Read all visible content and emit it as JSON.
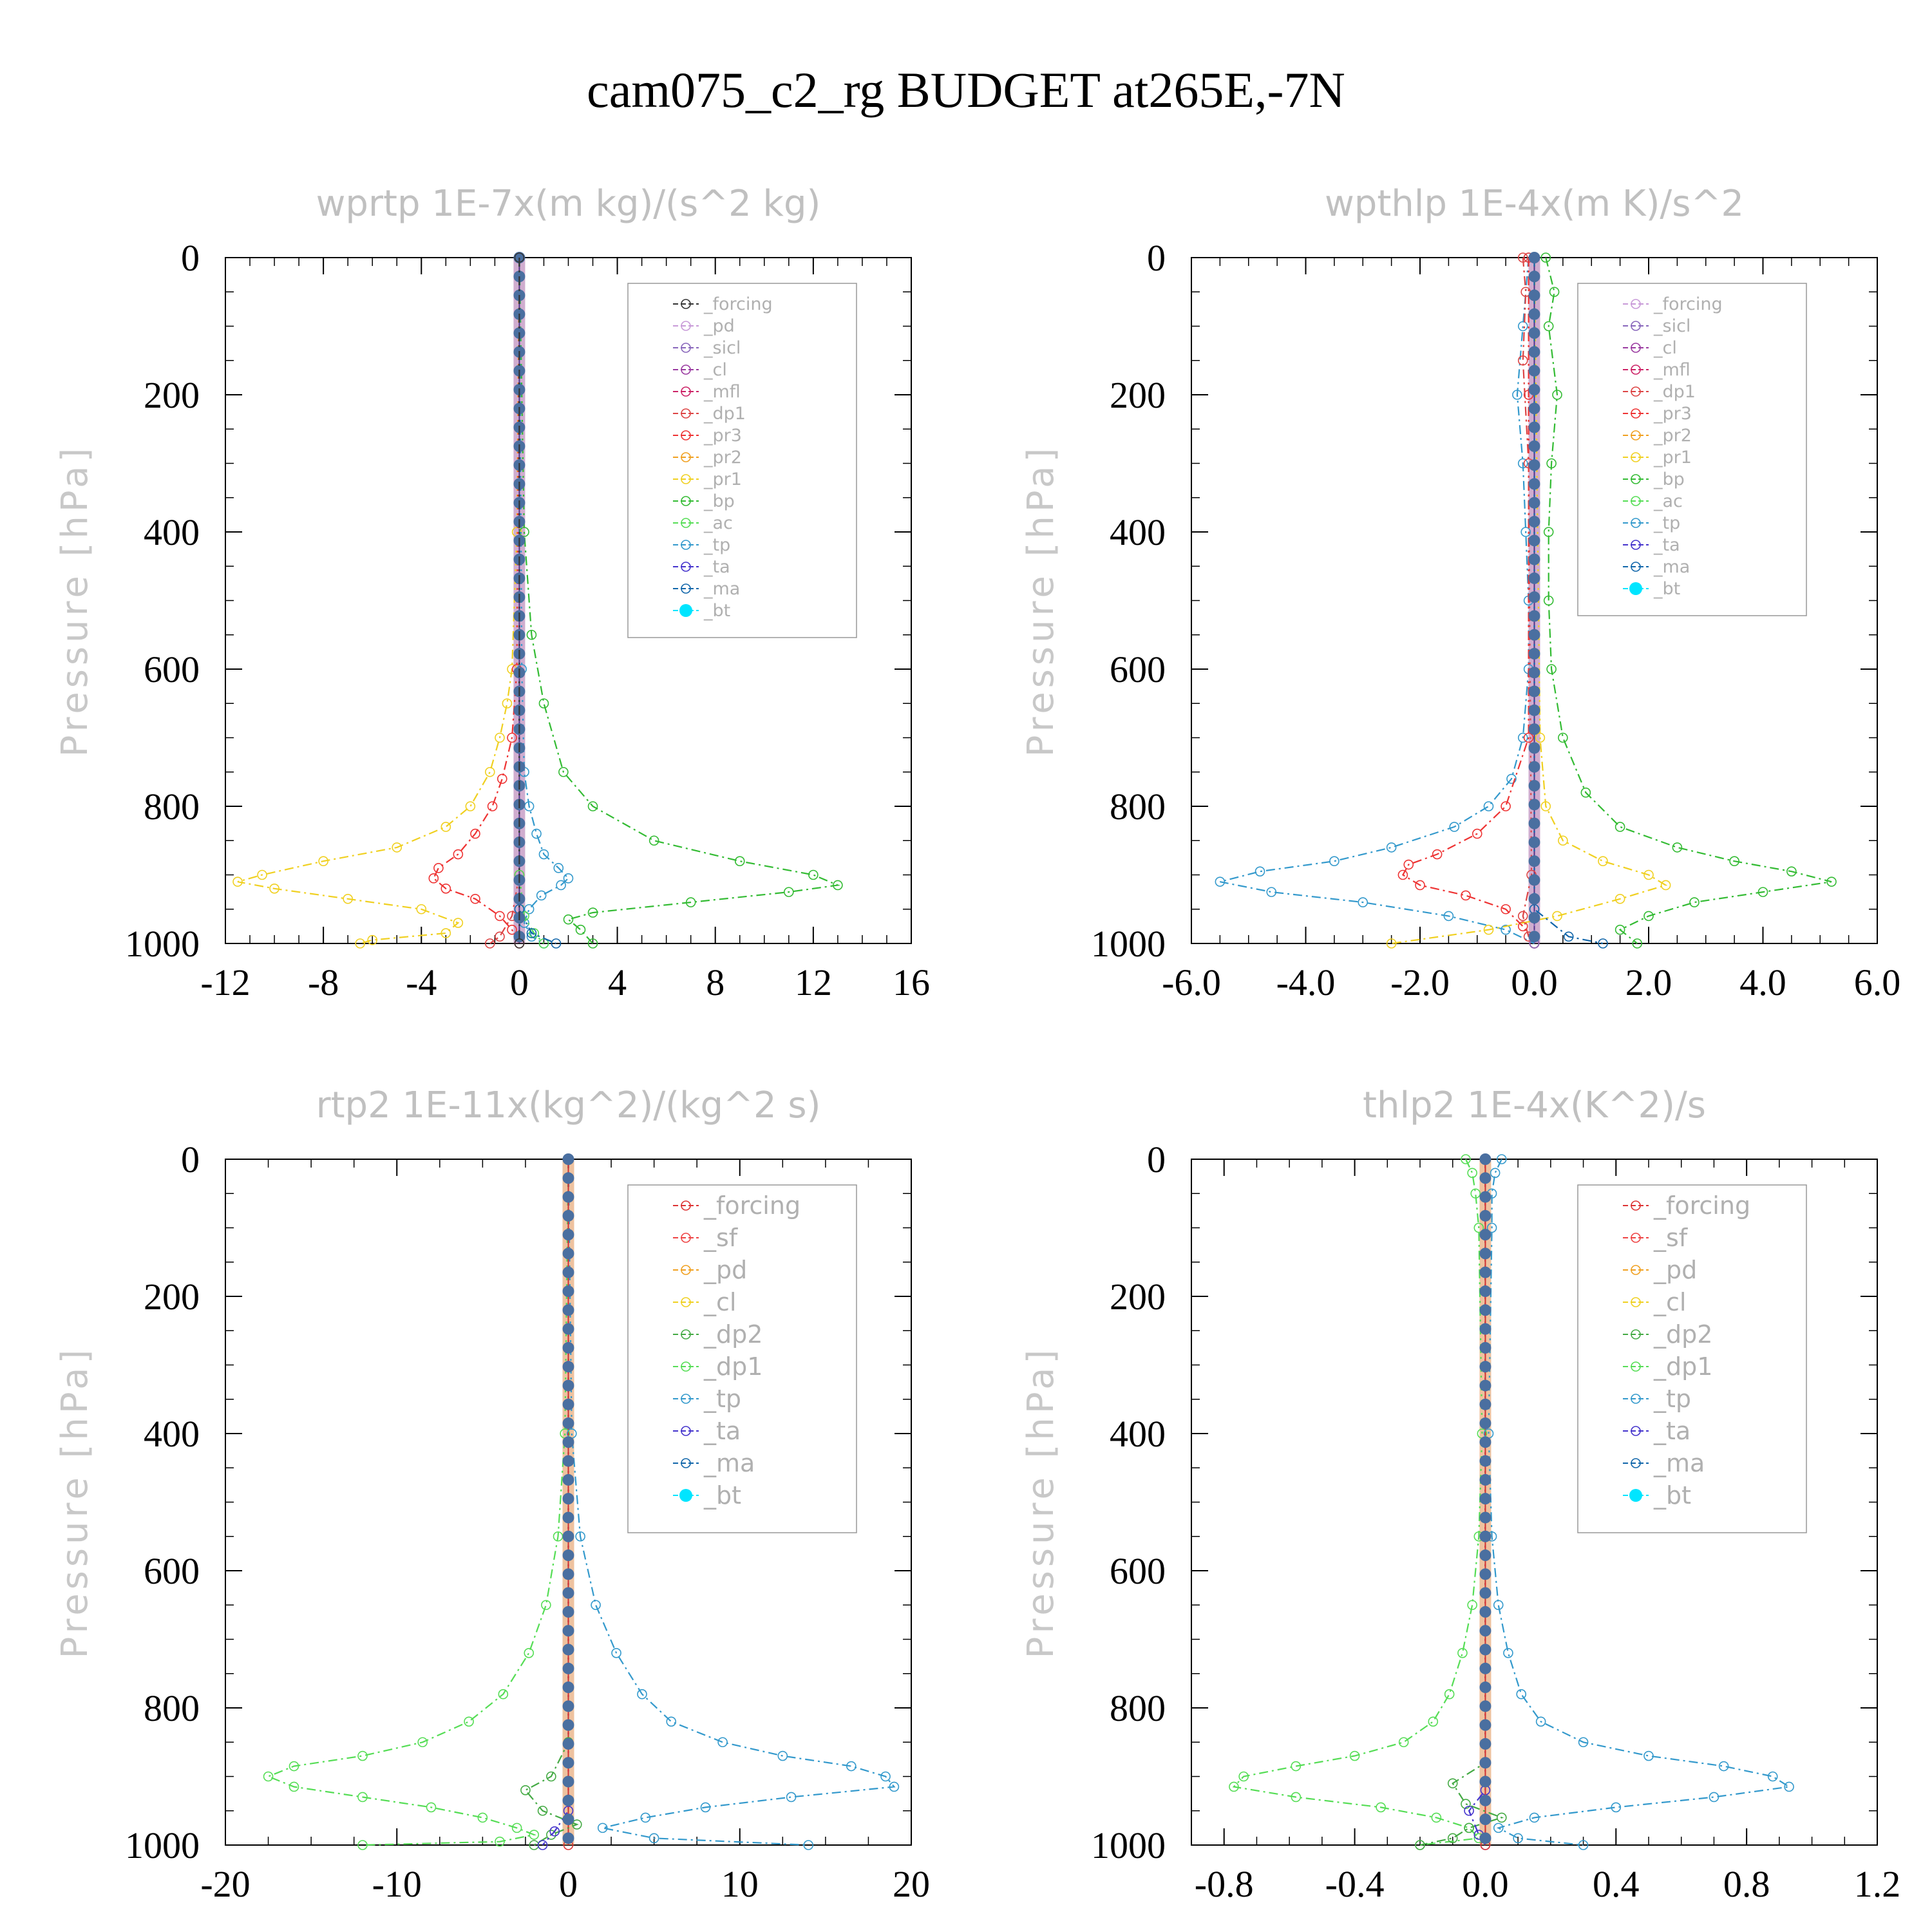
{
  "title": "cam075_c2_rg  BUDGET at265E,-7N",
  "colors": {
    "forcing": "#333333",
    "pd": "#c89ad8",
    "sicl": "#8866bb",
    "cl": "#9a3aa0",
    "mfl": "#cc2266",
    "dp1": "#dd4444",
    "pr3": "#ee3333",
    "pr2": "#f0a020",
    "pr1": "#f0d020",
    "bp": "#33bb33",
    "ac": "#55dd55",
    "tp": "#3399cc",
    "ta": "#4433cc",
    "ma": "#1166aa",
    "bt": "#00e5ff",
    "forcing2": "#dd3333",
    "sf": "#ee4444",
    "pd2": "#f0a020",
    "cl2": "#f0d020",
    "dp2": "#44aa44",
    "dp1b": "#55dd55"
  },
  "chart_data": [
    {
      "type": "line",
      "title": "wprtp   1E-7x(m kg)/(s^2 kg)",
      "ylabel": "Pressure [hPa]",
      "xlim": [
        -12,
        16
      ],
      "ylim": [
        1000,
        0
      ],
      "xticks": [
        "-12",
        "-8",
        "-4",
        "0",
        "4",
        "8",
        "12",
        "16"
      ],
      "yticks": [
        "0",
        "200",
        "400",
        "600",
        "800",
        "1000"
      ],
      "legend_position": "top-right",
      "legend": [
        "_forcing",
        "_pd",
        "_sicl",
        "_cl",
        "_mfl",
        "_dp1",
        "_pr3",
        "_pr2",
        "_pr1",
        "_bp",
        "_ac",
        "_tp",
        "_ta",
        "_ma",
        "_bt"
      ],
      "series": [
        {
          "key": "pr1",
          "p": [
            0,
            400,
            600,
            650,
            700,
            750,
            800,
            830,
            860,
            880,
            900,
            910,
            920,
            935,
            950,
            970,
            985,
            995,
            1000
          ],
          "x": [
            0,
            -0.1,
            -0.3,
            -0.5,
            -0.8,
            -1.2,
            -2,
            -3,
            -5,
            -8,
            -10.5,
            -11.5,
            -10,
            -7,
            -4,
            -2.5,
            -3,
            -6,
            -6.5
          ]
        },
        {
          "key": "pr3",
          "p": [
            0,
            600,
            700,
            760,
            800,
            840,
            870,
            890,
            905,
            920,
            935,
            960,
            980,
            1000
          ],
          "x": [
            0,
            -0.1,
            -0.3,
            -0.7,
            -1.1,
            -1.8,
            -2.5,
            -3.3,
            -3.5,
            -3,
            -1.8,
            -0.8,
            -0.3,
            0
          ]
        },
        {
          "key": "bp",
          "p": [
            0,
            400,
            550,
            650,
            750,
            800,
            850,
            880,
            900,
            915,
            925,
            940,
            955,
            965,
            980,
            1000
          ],
          "x": [
            0,
            0.2,
            0.5,
            1,
            1.8,
            3,
            5.5,
            9,
            12,
            13,
            11,
            7,
            3,
            2,
            2.5,
            3
          ]
        },
        {
          "key": "tp",
          "p": [
            0,
            600,
            750,
            800,
            840,
            870,
            890,
            905,
            915,
            930,
            950,
            970,
            990,
            1000
          ],
          "x": [
            0,
            0.1,
            0.2,
            0.4,
            0.7,
            1,
            1.6,
            2,
            1.7,
            0.9,
            0.4,
            0.2,
            0.5,
            1
          ]
        },
        {
          "key": "dp1",
          "p": [
            0,
            900,
            960,
            990,
            1000
          ],
          "x": [
            0,
            0,
            -0.3,
            -0.8,
            -1.2
          ]
        },
        {
          "key": "ac",
          "p": [
            0,
            900,
            960,
            985,
            1000
          ],
          "x": [
            0,
            0,
            0.2,
            0.6,
            1
          ]
        },
        {
          "key": "ma",
          "p": [
            0,
            950,
            985,
            1000
          ],
          "x": [
            0,
            0,
            0.5,
            1.5
          ]
        },
        {
          "key": "bt",
          "p": [
            0,
            1000
          ],
          "x": [
            0,
            0
          ]
        },
        {
          "key": "forcing",
          "p": [
            0,
            1000
          ],
          "x": [
            0,
            0
          ]
        }
      ]
    },
    {
      "type": "line",
      "title": "wpthlp   1E-4x(m K)/s^2",
      "ylabel": "Pressure [hPa]",
      "xlim": [
        -6,
        6
      ],
      "ylim": [
        1000,
        0
      ],
      "xticks": [
        "-6.0",
        "-4.0",
        "-2.0",
        "0.0",
        "2.0",
        "4.0",
        "6.0"
      ],
      "yticks": [
        "0",
        "200",
        "400",
        "600",
        "800",
        "1000"
      ],
      "legend_position": "top-right",
      "legend": [
        "_forcing",
        "_sicl",
        "_cl",
        "_mfl",
        "_dp1",
        "_pr3",
        "_pr2",
        "_pr1",
        "_bp",
        "_ac",
        "_tp",
        "_ta",
        "_ma",
        "_bt"
      ],
      "series": [
        {
          "key": "bp",
          "p": [
            0,
            50,
            100,
            200,
            300,
            400,
            500,
            600,
            700,
            780,
            830,
            860,
            880,
            895,
            910,
            925,
            940,
            960,
            980,
            1000
          ],
          "x": [
            0.2,
            0.35,
            0.25,
            0.4,
            0.3,
            0.25,
            0.25,
            0.3,
            0.5,
            0.9,
            1.5,
            2.5,
            3.5,
            4.5,
            5.2,
            4,
            2.8,
            2,
            1.5,
            1.8
          ]
        },
        {
          "key": "tp",
          "p": [
            0,
            100,
            200,
            300,
            400,
            500,
            600,
            700,
            760,
            800,
            830,
            860,
            880,
            895,
            910,
            925,
            940,
            960,
            980,
            1000
          ],
          "x": [
            -0.1,
            -0.2,
            -0.3,
            -0.2,
            -0.15,
            -0.1,
            -0.1,
            -0.2,
            -0.4,
            -0.8,
            -1.4,
            -2.5,
            -3.5,
            -4.8,
            -5.5,
            -4.6,
            -3,
            -1.5,
            -0.5,
            0
          ]
        },
        {
          "key": "pr3",
          "p": [
            0,
            200,
            700,
            800,
            840,
            870,
            885,
            900,
            915,
            930,
            950,
            975,
            1000
          ],
          "x": [
            -0.1,
            -0.1,
            -0.1,
            -0.5,
            -1,
            -1.7,
            -2.2,
            -2.3,
            -2,
            -1.2,
            -0.5,
            -0.2,
            0
          ]
        },
        {
          "key": "pr1",
          "p": [
            0,
            700,
            800,
            850,
            880,
            900,
            915,
            935,
            960,
            980,
            1000
          ],
          "x": [
            0,
            0.1,
            0.2,
            0.5,
            1.2,
            2,
            2.3,
            1.5,
            0.4,
            -0.8,
            -2.5
          ]
        },
        {
          "key": "dp1",
          "p": [
            0,
            50,
            150,
            300,
            900,
            960,
            990,
            1000
          ],
          "x": [
            -0.2,
            -0.15,
            -0.2,
            -0.1,
            -0.05,
            -0.2,
            -0.1,
            0
          ]
        },
        {
          "key": "sicl",
          "p": [
            0,
            1000
          ],
          "x": [
            0,
            0
          ]
        },
        {
          "key": "ma",
          "p": [
            0,
            950,
            990,
            1000
          ],
          "x": [
            0,
            0,
            0.6,
            1.2
          ]
        },
        {
          "key": "bt",
          "p": [
            0,
            1000
          ],
          "x": [
            0,
            0
          ]
        }
      ]
    },
    {
      "type": "line",
      "title": "rtp2   1E-11x(kg^2)/(kg^2 s)",
      "ylabel": "Pressure [hPa]",
      "xlim": [
        -20,
        20
      ],
      "ylim": [
        1000,
        0
      ],
      "xticks": [
        "-20",
        "-10",
        "0",
        "10",
        "20"
      ],
      "yticks": [
        "0",
        "200",
        "400",
        "600",
        "800",
        "1000"
      ],
      "legend_position": "top-right",
      "legend": [
        "_forcing",
        "_sf",
        "_pd",
        "_cl",
        "_dp2",
        "_dp1",
        "_tp",
        "_ta",
        "_ma",
        "_bt"
      ],
      "series": [
        {
          "key": "dp1b",
          "p": [
            0,
            400,
            550,
            650,
            720,
            780,
            820,
            850,
            870,
            885,
            900,
            915,
            930,
            945,
            960,
            975,
            985,
            995,
            1000
          ],
          "x": [
            0,
            -0.2,
            -0.6,
            -1.3,
            -2.3,
            -3.8,
            -5.8,
            -8.5,
            -12,
            -16,
            -17.5,
            -16,
            -12,
            -8,
            -5,
            -3,
            -2,
            -4,
            -12
          ]
        },
        {
          "key": "tp",
          "p": [
            0,
            400,
            550,
            650,
            720,
            780,
            820,
            850,
            870,
            885,
            900,
            915,
            930,
            945,
            960,
            975,
            990,
            1000
          ],
          "x": [
            0,
            0.2,
            0.7,
            1.6,
            2.8,
            4.3,
            6,
            9,
            12.5,
            16.5,
            18.5,
            19,
            13,
            8,
            4.5,
            2,
            5,
            14
          ]
        },
        {
          "key": "dp2",
          "p": [
            0,
            850,
            900,
            920,
            950,
            970,
            985,
            1000
          ],
          "x": [
            0,
            0,
            -1,
            -2.5,
            -1.5,
            0.5,
            -1,
            -2
          ]
        },
        {
          "key": "ta",
          "p": [
            0,
            950,
            980,
            1000
          ],
          "x": [
            0,
            0,
            -0.8,
            -1.5
          ]
        },
        {
          "key": "forcing2",
          "p": [
            0,
            1000
          ],
          "x": [
            0,
            0
          ]
        },
        {
          "key": "bt",
          "p": [
            0,
            1000
          ],
          "x": [
            0,
            0
          ]
        }
      ]
    },
    {
      "type": "line",
      "title": "thlp2   1E-4x(K^2)/s",
      "ylabel": "Pressure [hPa]",
      "xlim": [
        -0.9,
        1.2
      ],
      "ylim": [
        1000,
        0
      ],
      "xticks": [
        "-0.8",
        "-0.4",
        "0.0",
        "0.4",
        "0.8",
        "1.2"
      ],
      "yticks": [
        "0",
        "200",
        "400",
        "600",
        "800",
        "1000"
      ],
      "legend_position": "top-right",
      "legend": [
        "_forcing",
        "_sf",
        "_pd",
        "_cl",
        "_dp2",
        "_dp1",
        "_tp",
        "_ta",
        "_ma",
        "_bt"
      ],
      "series": [
        {
          "key": "dp1b",
          "p": [
            0,
            20,
            50,
            100,
            400,
            550,
            650,
            720,
            780,
            820,
            850,
            870,
            885,
            900,
            915,
            930,
            945,
            960,
            975,
            990,
            1000
          ],
          "x": [
            -0.06,
            -0.04,
            -0.03,
            -0.02,
            -0.01,
            -0.02,
            -0.04,
            -0.07,
            -0.11,
            -0.16,
            -0.25,
            -0.4,
            -0.58,
            -0.74,
            -0.77,
            -0.58,
            -0.32,
            -0.15,
            -0.05,
            -0.02,
            -0.2
          ]
        },
        {
          "key": "tp",
          "p": [
            0,
            20,
            50,
            100,
            400,
            550,
            650,
            720,
            780,
            820,
            850,
            870,
            885,
            900,
            915,
            930,
            945,
            960,
            975,
            990,
            1000
          ],
          "x": [
            0.05,
            0.03,
            0.02,
            0.02,
            0.01,
            0.02,
            0.04,
            0.07,
            0.11,
            0.17,
            0.3,
            0.5,
            0.73,
            0.88,
            0.93,
            0.7,
            0.4,
            0.15,
            0.04,
            0.1,
            0.3
          ]
        },
        {
          "key": "dp2",
          "p": [
            0,
            880,
            910,
            940,
            960,
            975,
            990,
            1000
          ],
          "x": [
            0,
            0,
            -0.1,
            -0.06,
            0.05,
            -0.05,
            -0.1,
            -0.2
          ]
        },
        {
          "key": "ta",
          "p": [
            0,
            920,
            950,
            985,
            1000
          ],
          "x": [
            0,
            0,
            -0.05,
            -0.02,
            0
          ]
        },
        {
          "key": "forcing2",
          "p": [
            0,
            1000
          ],
          "x": [
            0,
            0
          ]
        },
        {
          "key": "bt",
          "p": [
            0,
            1000
          ],
          "x": [
            0,
            0
          ]
        }
      ]
    }
  ]
}
